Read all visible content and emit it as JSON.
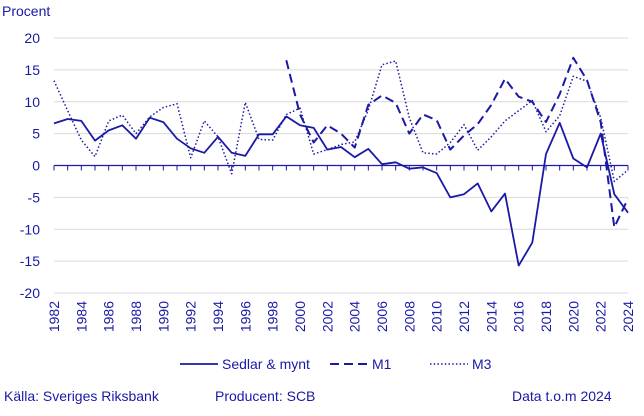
{
  "colors": {
    "series": "#1a1aa6",
    "grid": "#d9d9d9",
    "zero": "#1a1aa6"
  },
  "footer": {
    "source": "Källa: Sveriges Riksbank",
    "producer": "Producent: SCB",
    "data_through": "Data t.o.m 2024"
  },
  "chart_data": {
    "type": "line",
    "ylabel": "Procent",
    "ylim": [
      -20,
      20
    ],
    "yticks": [
      20,
      15,
      10,
      5,
      0,
      -5,
      -10,
      -15,
      -20
    ],
    "xlim": [
      1982,
      2024
    ],
    "xticks": [
      "1982",
      "1984",
      "1986",
      "1988",
      "1990",
      "1992",
      "1994",
      "1996",
      "1998",
      "2000",
      "2002",
      "2004",
      "2006",
      "2008",
      "2010",
      "2012",
      "2014",
      "2016",
      "2018",
      "2020",
      "2022",
      "2024"
    ],
    "series": [
      {
        "name": "Sedlar & mynt",
        "style": "solid",
        "x": [
          1982,
          1983,
          1984,
          1985,
          1986,
          1987,
          1988,
          1989,
          1990,
          1991,
          1992,
          1993,
          1994,
          1995,
          1996,
          1997,
          1998,
          1999,
          2000,
          2001,
          2002,
          2003,
          2004,
          2005,
          2006,
          2007,
          2008,
          2009,
          2010,
          2011,
          2012,
          2013,
          2014,
          2015,
          2016,
          2017,
          2018,
          2019,
          2020,
          2021,
          2022,
          2023,
          2024
        ],
        "y": [
          6.6,
          7.3,
          7.0,
          3.9,
          5.5,
          6.3,
          4.2,
          7.5,
          6.8,
          4.2,
          2.7,
          2.0,
          4.5,
          2.0,
          1.5,
          4.9,
          4.9,
          7.7,
          6.3,
          5.9,
          2.5,
          2.9,
          1.3,
          2.6,
          0.2,
          0.5,
          -0.5,
          -0.3,
          -1.2,
          -5.0,
          -4.5,
          -2.8,
          -7.2,
          -4.4,
          -15.7,
          -12.1,
          1.8,
          6.7,
          1.1,
          -0.3,
          5.0,
          -4.5,
          -7.4
        ]
      },
      {
        "name": "M1",
        "style": "dashed",
        "x": [
          1999,
          2000,
          2001,
          2002,
          2003,
          2004,
          2005,
          2006,
          2007,
          2008,
          2009,
          2010,
          2011,
          2012,
          2013,
          2014,
          2015,
          2016,
          2017,
          2018,
          2019,
          2020,
          2021,
          2022,
          2023,
          2024
        ],
        "y": [
          16.5,
          8.0,
          3.6,
          6.3,
          5.0,
          2.8,
          9.5,
          11.0,
          9.8,
          5.0,
          8.0,
          7.1,
          2.5,
          4.7,
          6.5,
          9.5,
          13.6,
          10.8,
          10.0,
          6.8,
          11.2,
          16.9,
          13.4,
          6.8,
          -9.7,
          -5.2
        ]
      },
      {
        "name": "M3",
        "style": "dotted",
        "x": [
          1982,
          1983,
          1984,
          1985,
          1986,
          1987,
          1988,
          1989,
          1990,
          1991,
          1992,
          1993,
          1994,
          1995,
          1996,
          1997,
          1998,
          1999,
          2000,
          2001,
          2002,
          2003,
          2004,
          2005,
          2006,
          2007,
          2008,
          2009,
          2010,
          2011,
          2012,
          2013,
          2014,
          2015,
          2016,
          2017,
          2018,
          2019,
          2020,
          2021,
          2022,
          2023,
          2024
        ],
        "y": [
          13.3,
          8.6,
          4.0,
          1.4,
          7.0,
          7.9,
          5.0,
          7.6,
          9.1,
          9.7,
          1.2,
          7.0,
          4.5,
          -1.3,
          9.9,
          4.1,
          4.0,
          8.0,
          9.0,
          1.8,
          2.5,
          3.3,
          3.7,
          8.7,
          15.8,
          16.4,
          7.5,
          2.0,
          1.8,
          3.6,
          6.4,
          2.4,
          4.5,
          7.0,
          8.6,
          10.2,
          5.3,
          7.8,
          14.0,
          13.2,
          7.5,
          -2.5,
          -0.7
        ]
      }
    ]
  }
}
